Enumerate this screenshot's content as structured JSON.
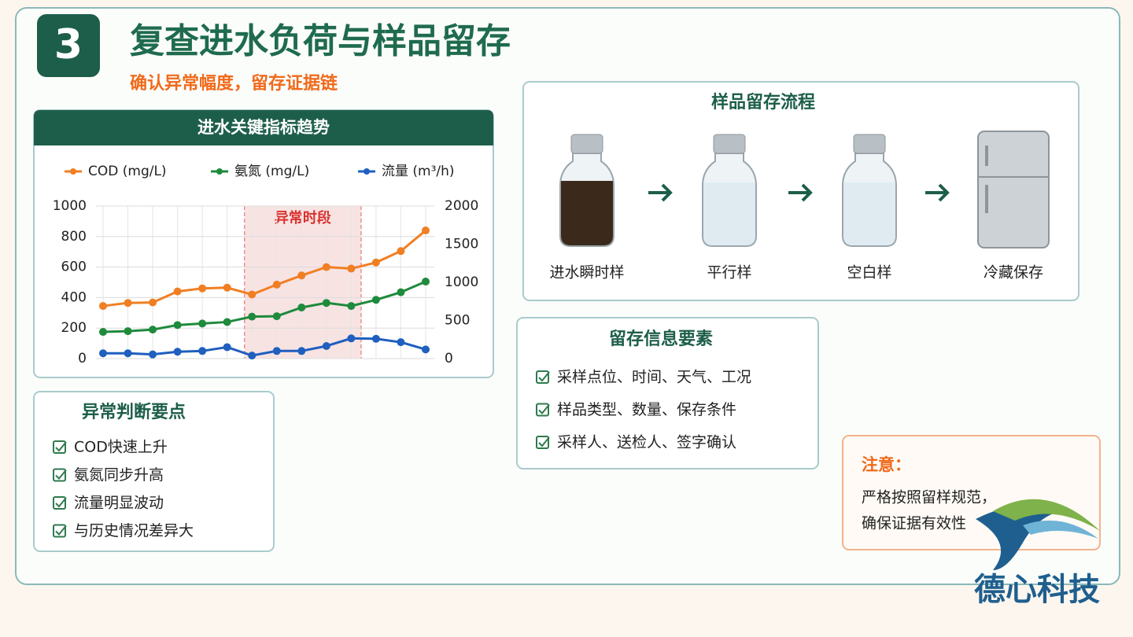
{
  "header": {
    "number": "3",
    "title": "复查进水负荷与样品留存",
    "subtitle": "确认异常幅度，留存证据链"
  },
  "chart_data": {
    "type": "line",
    "title": "进水关键指标趋势",
    "annotation": "异常时段",
    "categories": [
      null,
      null,
      null,
      null,
      null,
      null,
      null,
      null,
      null,
      null,
      null,
      null,
      null,
      null
    ],
    "series": [
      {
        "name": "COD (mg/L)",
        "color": "#f07f23",
        "values": [
          345,
          365,
          368,
          440,
          460,
          465,
          420,
          485,
          545,
          600,
          590,
          630,
          705,
          840
        ]
      },
      {
        "name": "氨氮 (mg/L)",
        "color": "#1f8a3c",
        "values": [
          175,
          180,
          190,
          220,
          230,
          240,
          275,
          278,
          335,
          365,
          345,
          385,
          435,
          505
        ]
      },
      {
        "name": "流量 (m³/h)",
        "color": "#1f5fbf",
        "axis": "y2",
        "values": [
          70,
          70,
          55,
          90,
          100,
          150,
          40,
          100,
          100,
          165,
          265,
          260,
          215,
          120
        ]
      }
    ],
    "ylim": [
      0,
      1000
    ],
    "yticks": [
      0,
      200,
      400,
      600,
      800,
      1000
    ],
    "y2lim": [
      0,
      2000
    ],
    "y2ticks": [
      0,
      500,
      1000,
      1500,
      2000
    ],
    "grid": true,
    "legend": "top"
  },
  "anomaly_points": {
    "title": "异常判断要点",
    "items": [
      "COD快速上升",
      "氨氮同步升高",
      "流量明显波动",
      "与历史情况差异大"
    ]
  },
  "sample_flow": {
    "title": "样品留存流程",
    "steps": [
      "进水瞬时样",
      "平行样",
      "空白样",
      "冷藏保存"
    ]
  },
  "retention_info": {
    "title": "留存信息要素",
    "items": [
      "采样点位、时间、天气、工况",
      "样品类型、数量、保存条件",
      "采样人、送检人、签字确认"
    ]
  },
  "note": {
    "title": "注意：",
    "lines": [
      "严格按照留样规范，",
      "确保证据有效性"
    ]
  },
  "logo": {
    "text": "德心科技"
  }
}
